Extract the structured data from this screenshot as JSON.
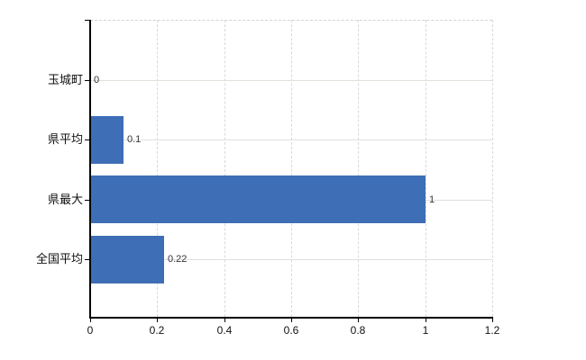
{
  "chart_data": {
    "type": "bar",
    "orientation": "horizontal",
    "title": "",
    "xlabel": "",
    "ylabel": "",
    "categories": [
      "玉城町",
      "県平均",
      "県最大",
      "全国平均"
    ],
    "values": [
      0,
      0.1,
      1,
      0.22
    ],
    "value_labels": [
      "0",
      "0.1",
      "1",
      "0.22"
    ],
    "xlim": [
      0,
      1.2
    ],
    "x_ticks": [
      0,
      0.2,
      0.4,
      0.6,
      0.8,
      1,
      1.2
    ],
    "x_tick_labels": [
      "0",
      "0.2",
      "0.4",
      "0.6",
      "0.8",
      "1",
      "1.2"
    ],
    "grid": true,
    "legend": false,
    "colors": {
      "bar": "#3e6eb5",
      "horizontal_gridline": "#dde2da",
      "vertical_gridline": "#d6d9e0",
      "axis": "#000000",
      "category_text": "#111111",
      "tick_text": "#111111",
      "value_text": "#333333",
      "background": "#ffffff"
    }
  }
}
